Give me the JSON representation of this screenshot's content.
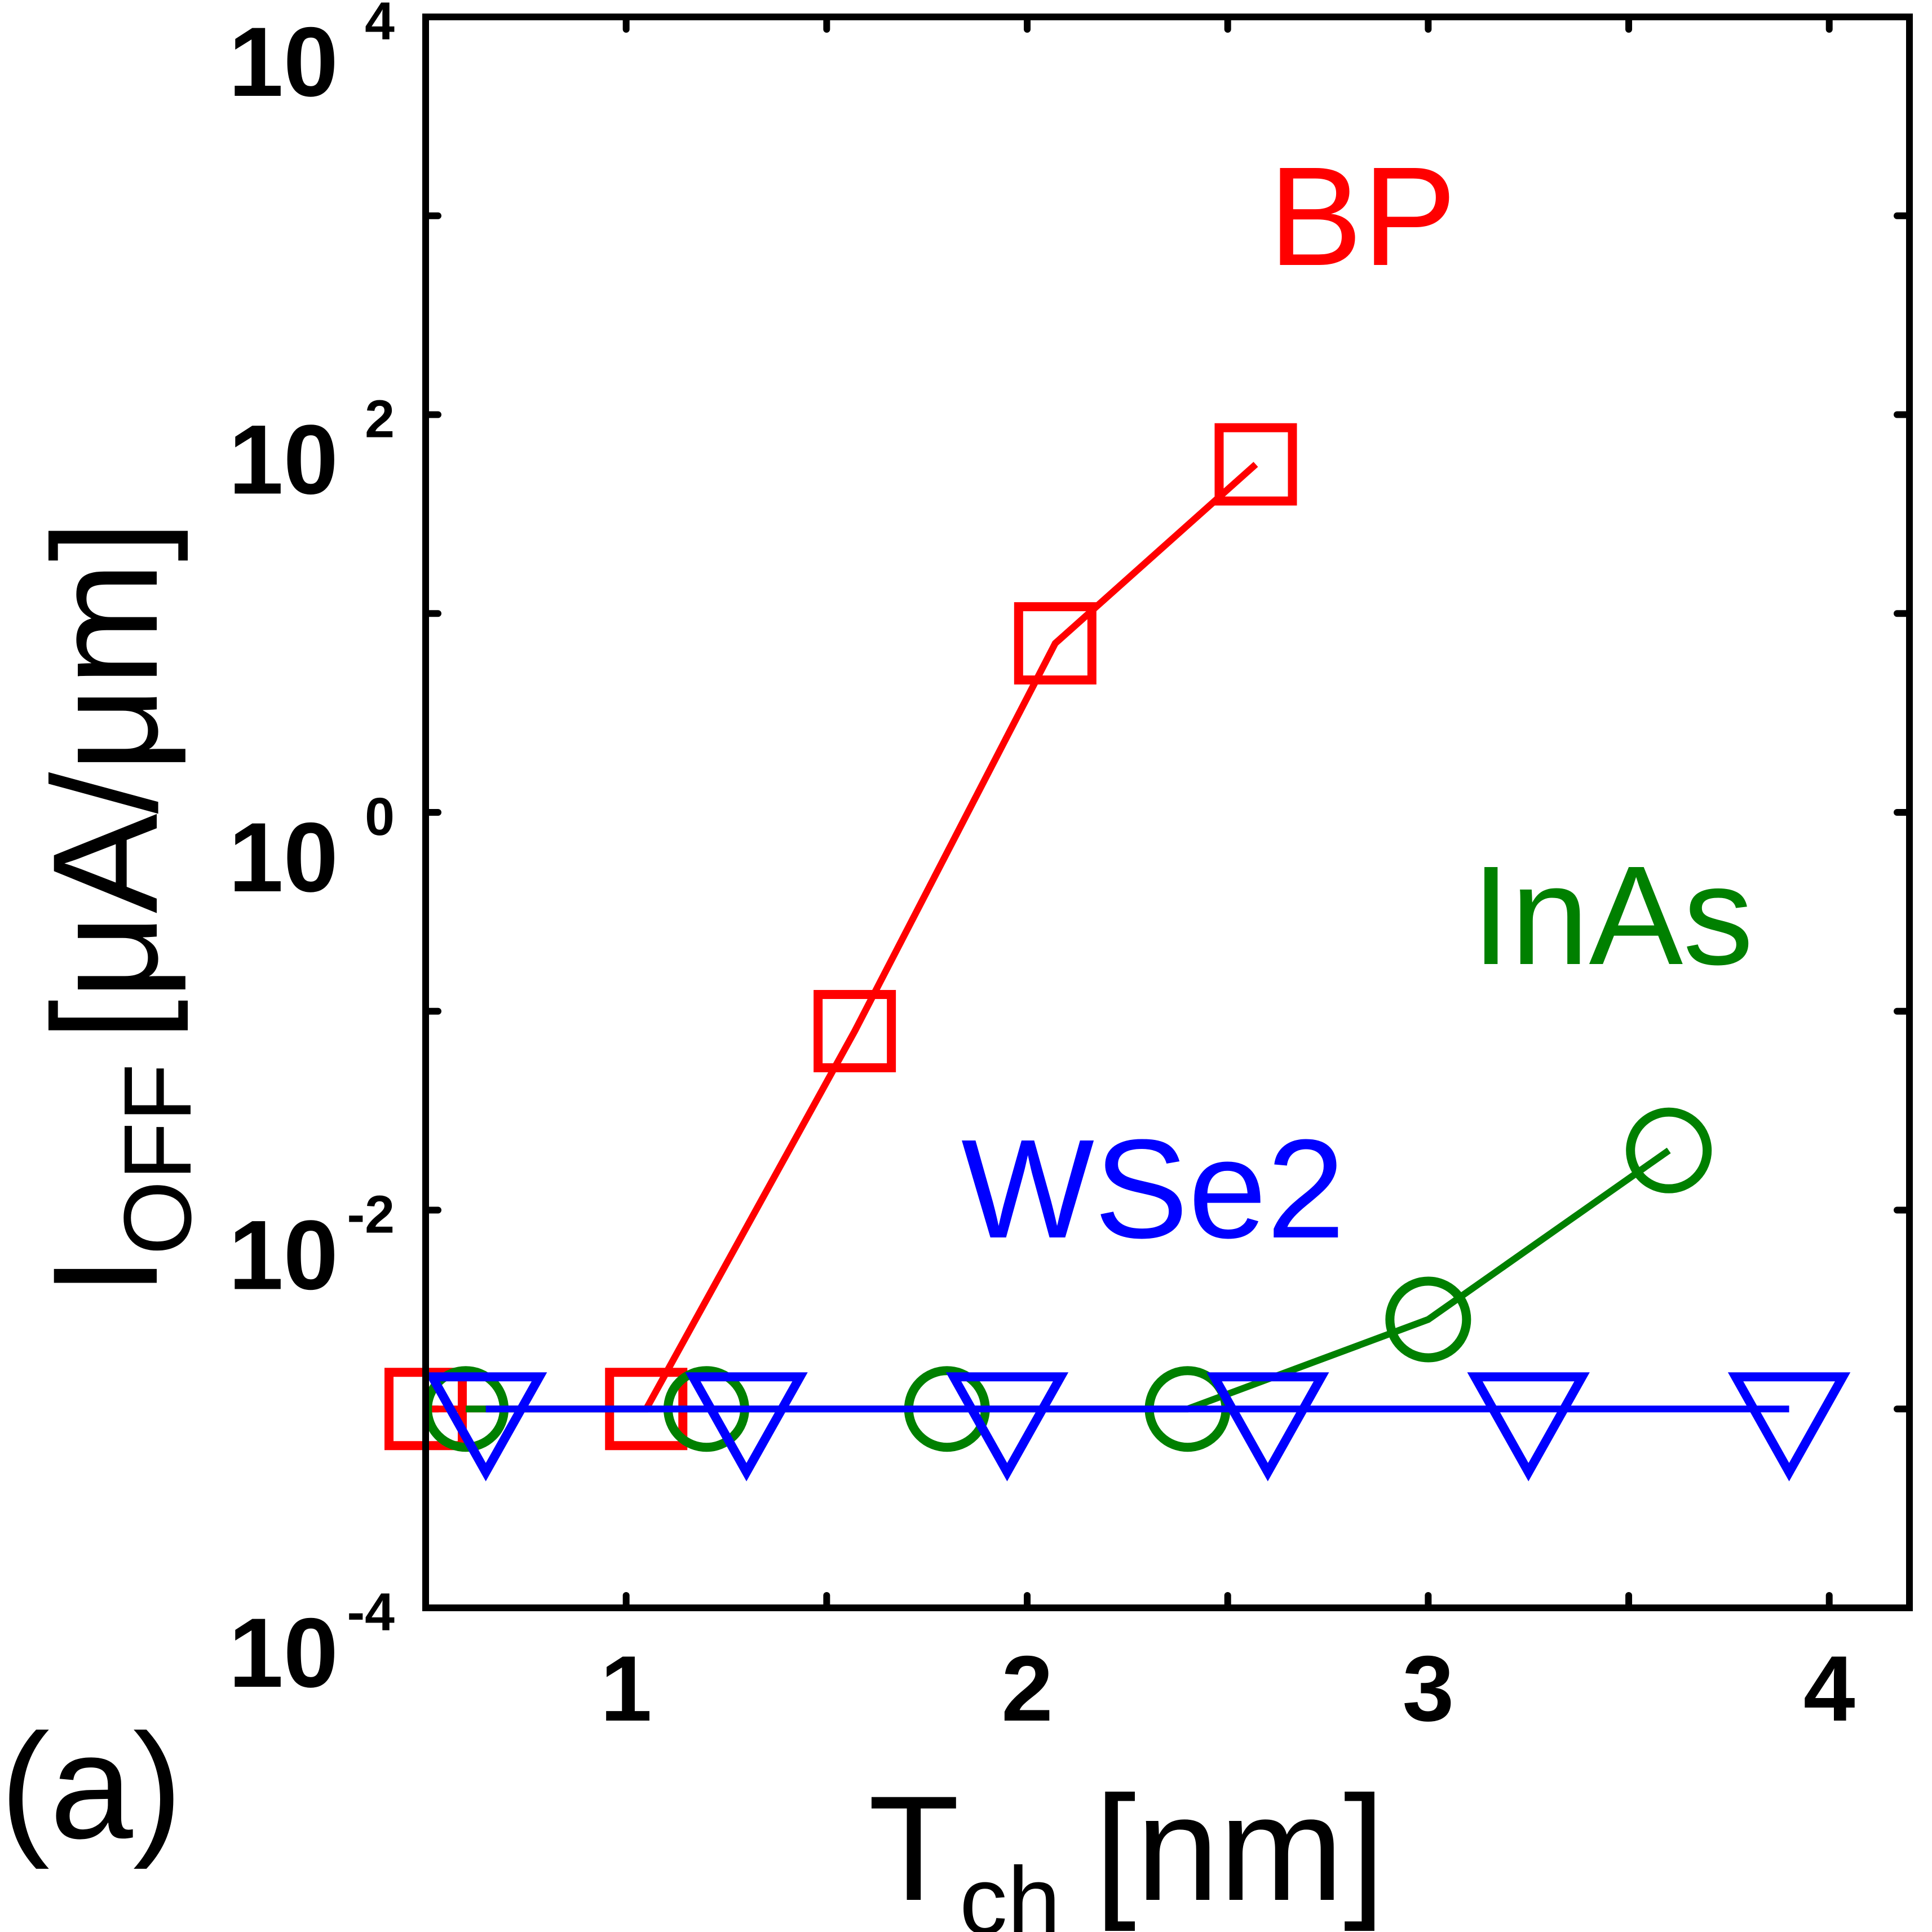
{
  "chart_data": {
    "type": "line",
    "panel_label": "(a)",
    "xlabel": "T",
    "xlabel_sub": "ch",
    "xlabel_unit": "[nm]",
    "ylabel": "I",
    "ylabel_sub": "OFF",
    "ylabel_unit": "[μA/μm]",
    "xlim": [
      0.5,
      4.2
    ],
    "ylim_log10": [
      -4,
      4
    ],
    "y_scale": "log",
    "x_ticks": [
      1,
      2,
      3,
      4
    ],
    "x_tick_labels": [
      "1",
      "2",
      "3",
      "4"
    ],
    "y_ticks_major": [
      {
        "base": "10",
        "exp": "-4"
      },
      {
        "base": "10",
        "exp": "-2"
      },
      {
        "base": "10",
        "exp": "0"
      },
      {
        "base": "10",
        "exp": "2"
      },
      {
        "base": "10",
        "exp": "4"
      }
    ],
    "series": [
      {
        "name": "BP",
        "label": "BP",
        "color": "#ff0000",
        "marker": "square",
        "x": [
          0.5,
          1.05,
          1.57,
          2.07,
          2.57
        ],
        "y_log10": [
          -3,
          -3,
          -1.1,
          0.85,
          1.75
        ]
      },
      {
        "name": "InAs",
        "label": "InAs",
        "color": "#008000",
        "marker": "circle",
        "x": [
          0.6,
          1.2,
          1.8,
          2.4,
          3.0,
          3.6
        ],
        "y_log10": [
          -3,
          -3,
          -3,
          -3,
          -2.55,
          -1.7
        ]
      },
      {
        "name": "WSe2",
        "label": "WSe2",
        "color": "#0000ff",
        "marker": "triangle-down",
        "x": [
          0.65,
          1.3,
          1.95,
          2.6,
          3.25,
          3.9
        ],
        "y_log10": [
          -3,
          -3,
          -3,
          -3,
          -3,
          -3
        ]
      }
    ]
  }
}
